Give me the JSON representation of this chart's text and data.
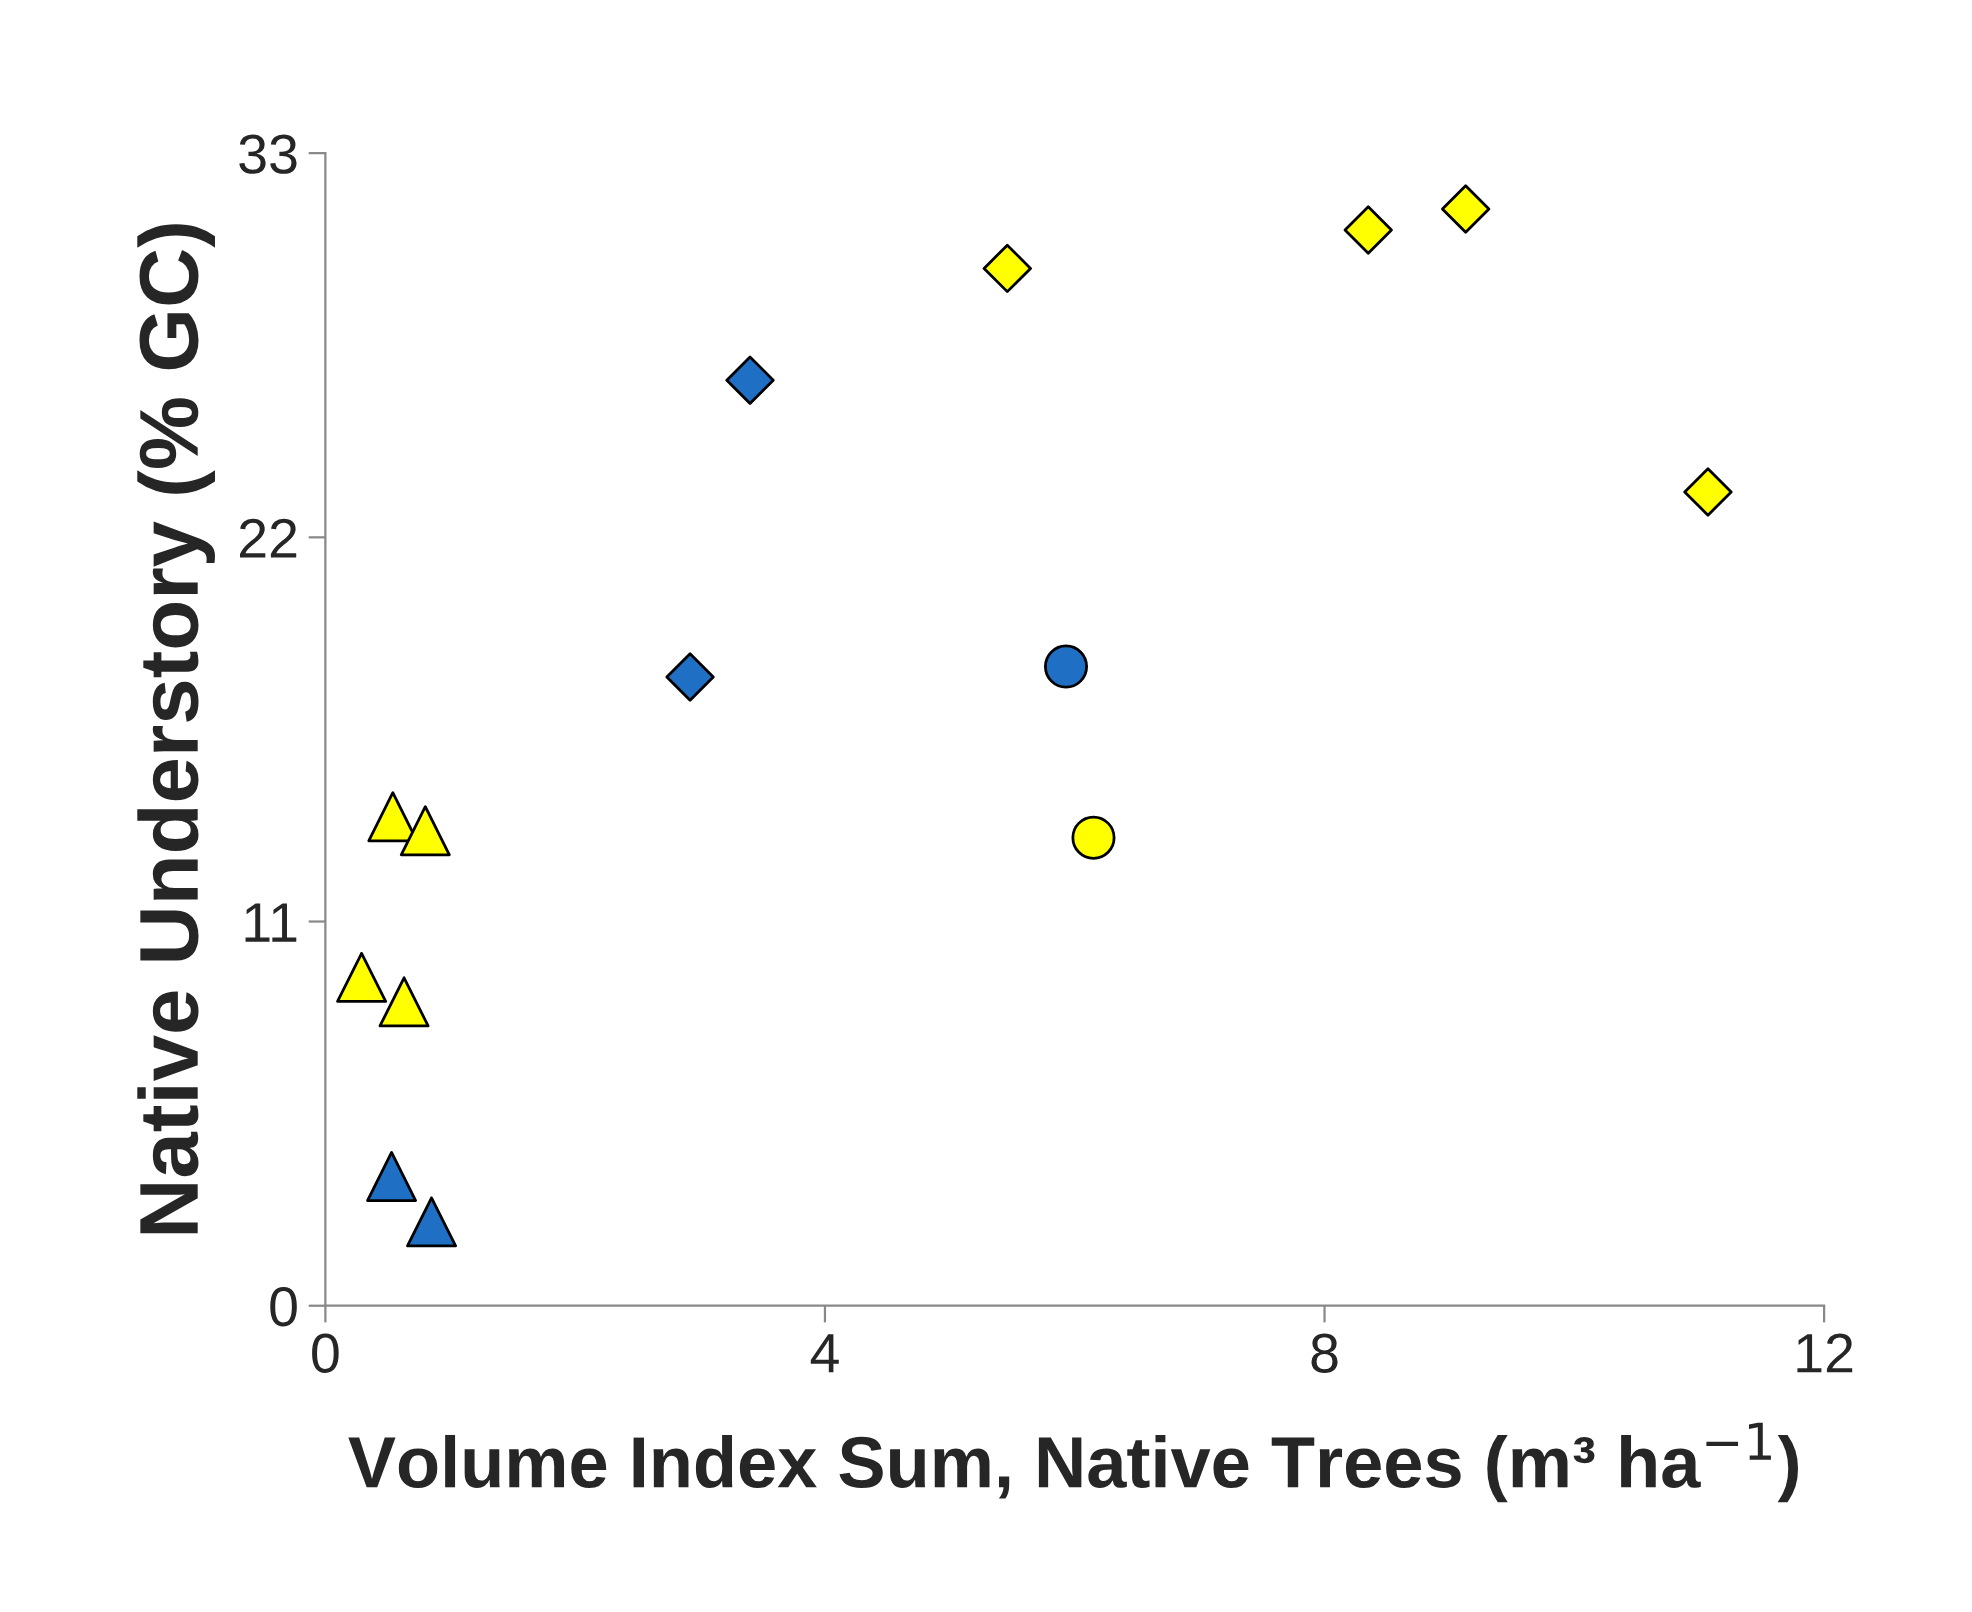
{
  "chart_data": {
    "type": "scatter",
    "xlabel": "Volume Index Sum, Native Trees (m³ ha$^{−1}$)",
    "ylabel": "Native Understory (% GC)",
    "xlim": [
      0,
      12
    ],
    "ylim": [
      0,
      33
    ],
    "xticks": [
      0,
      4,
      8,
      12
    ],
    "yticks": [
      0,
      11,
      22,
      33
    ],
    "grid": false,
    "legend": false,
    "series": [
      {
        "color": "#ffff00",
        "marker": "triangle",
        "x": [
          0.54,
          0.8,
          0.29,
          0.63
        ],
        "values": [
          14.0,
          13.6,
          9.4,
          8.7
        ]
      },
      {
        "color": "#ffff00",
        "marker": "diamond",
        "x": [
          5.46,
          8.35,
          9.13,
          11.07
        ],
        "values": [
          29.7,
          30.8,
          31.4,
          23.3
        ]
      },
      {
        "color": "#ffff00",
        "marker": "circle",
        "x": [
          6.15
        ],
        "values": [
          13.4
        ]
      },
      {
        "color": "#1f6fc5",
        "marker": "triangle",
        "x": [
          0.53,
          0.85
        ],
        "values": [
          3.7,
          2.4
        ]
      },
      {
        "color": "#1f6fc5",
        "marker": "diamond",
        "x": [
          3.4,
          2.92
        ],
        "values": [
          26.5,
          18.0
        ]
      },
      {
        "color": "#1f6fc5",
        "marker": "circle",
        "x": [
          5.93
        ],
        "values": [
          18.3
        ]
      }
    ]
  }
}
